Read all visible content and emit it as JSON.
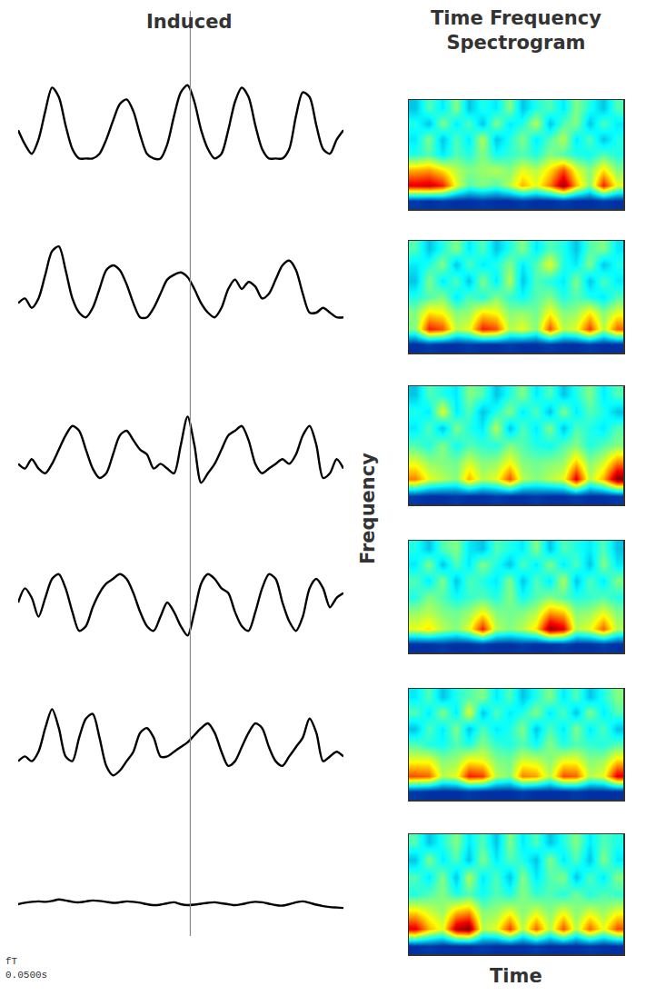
{
  "chart_data": [
    {
      "type": "line",
      "title": "Induced",
      "color": "#000000",
      "tick_labels": false,
      "xlim": [
        0,
        48
      ],
      "ylim": [
        -1,
        1
      ],
      "cursor_x": 25.4,
      "scale_labels": [
        "fT",
        "0.0500s"
      ],
      "panels": [
        [
          -0.1,
          -0.4,
          -0.6,
          -0.3,
          0.3,
          0.8,
          0.6,
          0.0,
          -0.5,
          -0.7,
          -0.7,
          -0.7,
          -0.6,
          -0.3,
          0.1,
          0.45,
          0.55,
          0.3,
          -0.2,
          -0.6,
          -0.7,
          -0.7,
          -0.4,
          0.2,
          0.7,
          0.85,
          0.5,
          -0.1,
          -0.5,
          -0.7,
          -0.6,
          -0.1,
          0.5,
          0.8,
          0.6,
          0.0,
          -0.5,
          -0.7,
          -0.7,
          -0.7,
          -0.5,
          0.2,
          0.7,
          0.6,
          0.0,
          -0.5,
          -0.6,
          -0.3,
          -0.1
        ],
        [
          -0.3,
          -0.2,
          -0.4,
          -0.2,
          0.3,
          0.8,
          0.9,
          0.4,
          -0.2,
          -0.5,
          -0.6,
          -0.4,
          0.0,
          0.4,
          0.5,
          0.4,
          0.1,
          -0.3,
          -0.6,
          -0.6,
          -0.4,
          -0.1,
          0.2,
          0.3,
          0.35,
          0.25,
          0.0,
          -0.3,
          -0.5,
          -0.6,
          -0.4,
          0.0,
          0.2,
          0.0,
          0.15,
          0.05,
          -0.2,
          -0.1,
          0.2,
          0.5,
          0.6,
          0.4,
          -0.1,
          -0.5,
          -0.5,
          -0.4,
          -0.5,
          -0.6,
          -0.6
        ],
        [
          -0.2,
          -0.3,
          -0.1,
          -0.3,
          -0.4,
          -0.2,
          0.1,
          0.4,
          0.6,
          0.5,
          0.1,
          -0.3,
          -0.5,
          -0.4,
          0.0,
          0.4,
          0.5,
          0.3,
          0.1,
          0.0,
          -0.3,
          -0.2,
          -0.3,
          -0.4,
          0.2,
          0.8,
          0.2,
          -0.6,
          -0.4,
          -0.2,
          0.1,
          0.4,
          0.5,
          0.6,
          0.3,
          -0.2,
          -0.4,
          -0.3,
          -0.2,
          -0.1,
          -0.2,
          0.0,
          0.4,
          0.6,
          0.2,
          -0.5,
          -0.4,
          -0.1,
          -0.3
        ],
        [
          0.0,
          0.3,
          0.1,
          -0.3,
          0.1,
          0.5,
          0.6,
          0.3,
          -0.2,
          -0.6,
          -0.5,
          -0.1,
          0.2,
          0.4,
          0.5,
          0.6,
          0.5,
          0.2,
          -0.2,
          -0.5,
          -0.6,
          -0.3,
          0.0,
          -0.2,
          -0.5,
          -0.7,
          -0.2,
          0.4,
          0.6,
          0.5,
          0.3,
          0.2,
          -0.2,
          -0.5,
          -0.6,
          -0.2,
          0.3,
          0.6,
          0.5,
          0.0,
          -0.4,
          -0.6,
          -0.3,
          0.3,
          0.5,
          0.3,
          -0.1,
          0.1,
          0.2
        ],
        [
          -0.3,
          -0.2,
          -0.3,
          -0.1,
          0.4,
          0.8,
          0.4,
          -0.2,
          -0.3,
          0.2,
          0.6,
          0.7,
          0.2,
          -0.4,
          -0.6,
          -0.5,
          -0.3,
          -0.1,
          0.3,
          0.4,
          0.2,
          -0.2,
          -0.2,
          -0.1,
          0.0,
          0.1,
          0.25,
          0.4,
          0.5,
          0.3,
          -0.1,
          -0.4,
          -0.3,
          0.0,
          0.3,
          0.5,
          0.4,
          0.0,
          -0.3,
          -0.4,
          -0.2,
          0.0,
          0.2,
          0.6,
          0.3,
          -0.3,
          -0.2,
          -0.1,
          -0.2
        ],
        [
          0.0,
          0.03,
          0.05,
          0.06,
          0.05,
          0.07,
          0.1,
          0.08,
          0.05,
          0.04,
          0.06,
          0.08,
          0.07,
          0.05,
          0.03,
          0.04,
          0.06,
          0.05,
          0.03,
          0.0,
          -0.02,
          -0.01,
          0.02,
          0.04,
          0.0,
          -0.02,
          -0.01,
          0.01,
          0.03,
          0.04,
          0.02,
          0.0,
          -0.02,
          0.0,
          0.03,
          0.05,
          0.04,
          0.01,
          -0.02,
          -0.03,
          0.0,
          0.04,
          0.06,
          0.03,
          -0.01,
          -0.04,
          -0.06,
          -0.07,
          -0.08
        ]
      ]
    },
    {
      "type": "heatmap",
      "title": "Time Frequency Spectrogram",
      "x_label": "Time",
      "y_label": "Frequency",
      "tick_labels": false,
      "xlim": [
        -0.5,
        15.5
      ],
      "ylim": [
        -0.5,
        6.5
      ],
      "zlim": [
        0,
        1
      ],
      "panels": [
        [
          [
            0.12,
            0.1,
            0.12,
            0.1,
            0.1,
            0.12,
            0.1,
            0.1,
            0.12,
            0.1,
            0.1,
            0.12,
            0.1,
            0.1,
            0.12,
            0.1
          ],
          [
            0.9,
            0.92,
            0.85,
            0.6,
            0.45,
            0.5,
            0.45,
            0.55,
            0.7,
            0.6,
            0.75,
            0.98,
            0.7,
            0.5,
            0.85,
            0.6
          ],
          [
            0.7,
            0.72,
            0.65,
            0.55,
            0.5,
            0.52,
            0.55,
            0.5,
            0.6,
            0.55,
            0.65,
            0.8,
            0.6,
            0.5,
            0.65,
            0.5
          ],
          [
            0.4,
            0.45,
            0.35,
            0.45,
            0.4,
            0.5,
            0.38,
            0.42,
            0.45,
            0.4,
            0.5,
            0.45,
            0.4,
            0.38,
            0.45,
            0.4
          ],
          [
            0.35,
            0.5,
            0.3,
            0.45,
            0.35,
            0.55,
            0.3,
            0.4,
            0.5,
            0.35,
            0.45,
            0.55,
            0.35,
            0.45,
            0.3,
            0.4
          ],
          [
            0.4,
            0.3,
            0.5,
            0.35,
            0.45,
            0.3,
            0.5,
            0.35,
            0.4,
            0.55,
            0.3,
            0.45,
            0.5,
            0.3,
            0.45,
            0.35
          ],
          [
            0.3,
            0.45,
            0.35,
            0.5,
            0.3,
            0.4,
            0.35,
            0.5,
            0.3,
            0.4,
            0.45,
            0.35,
            0.5,
            0.4,
            0.3,
            0.45
          ]
        ],
        [
          [
            0.1,
            0.12,
            0.1,
            0.1,
            0.12,
            0.1,
            0.1,
            0.12,
            0.1,
            0.1,
            0.12,
            0.1,
            0.1,
            0.12,
            0.1,
            0.1
          ],
          [
            0.5,
            0.85,
            0.8,
            0.55,
            0.6,
            0.85,
            0.8,
            0.55,
            0.6,
            0.5,
            0.8,
            0.55,
            0.6,
            0.82,
            0.55,
            0.78
          ],
          [
            0.5,
            0.65,
            0.62,
            0.5,
            0.52,
            0.65,
            0.62,
            0.5,
            0.52,
            0.48,
            0.62,
            0.5,
            0.52,
            0.64,
            0.5,
            0.6
          ],
          [
            0.4,
            0.45,
            0.5,
            0.35,
            0.45,
            0.4,
            0.5,
            0.42,
            0.38,
            0.45,
            0.5,
            0.4,
            0.45,
            0.4,
            0.35,
            0.45
          ],
          [
            0.3,
            0.5,
            0.35,
            0.45,
            0.3,
            0.5,
            0.35,
            0.55,
            0.3,
            0.45,
            0.4,
            0.35,
            0.5,
            0.3,
            0.45,
            0.35
          ],
          [
            0.35,
            0.4,
            0.5,
            0.3,
            0.45,
            0.35,
            0.4,
            0.5,
            0.35,
            0.45,
            0.6,
            0.4,
            0.35,
            0.5,
            0.3,
            0.4
          ],
          [
            0.45,
            0.3,
            0.4,
            0.5,
            0.35,
            0.45,
            0.3,
            0.4,
            0.5,
            0.35,
            0.45,
            0.4,
            0.3,
            0.45,
            0.5,
            0.35
          ]
        ],
        [
          [
            0.12,
            0.1,
            0.1,
            0.12,
            0.1,
            0.1,
            0.12,
            0.1,
            0.1,
            0.12,
            0.1,
            0.1,
            0.12,
            0.1,
            0.1,
            0.12
          ],
          [
            0.75,
            0.6,
            0.55,
            0.5,
            0.7,
            0.55,
            0.6,
            0.8,
            0.55,
            0.5,
            0.55,
            0.6,
            0.9,
            0.55,
            0.7,
            1.0
          ],
          [
            0.6,
            0.52,
            0.5,
            0.48,
            0.58,
            0.5,
            0.52,
            0.62,
            0.5,
            0.48,
            0.5,
            0.52,
            0.68,
            0.5,
            0.58,
            0.75
          ],
          [
            0.45,
            0.4,
            0.5,
            0.38,
            0.45,
            0.42,
            0.4,
            0.5,
            0.45,
            0.4,
            0.38,
            0.45,
            0.5,
            0.4,
            0.45,
            0.5
          ],
          [
            0.35,
            0.45,
            0.3,
            0.5,
            0.4,
            0.35,
            0.55,
            0.3,
            0.45,
            0.35,
            0.5,
            0.3,
            0.45,
            0.4,
            0.35,
            0.45
          ],
          [
            0.4,
            0.35,
            0.6,
            0.35,
            0.45,
            0.3,
            0.4,
            0.5,
            0.35,
            0.45,
            0.3,
            0.5,
            0.35,
            0.45,
            0.4,
            0.3
          ],
          [
            0.3,
            0.45,
            0.4,
            0.35,
            0.5,
            0.45,
            0.3,
            0.4,
            0.5,
            0.35,
            0.45,
            0.3,
            0.4,
            0.5,
            0.35,
            0.45
          ]
        ],
        [
          [
            0.1,
            0.1,
            0.12,
            0.1,
            0.1,
            0.12,
            0.1,
            0.1,
            0.12,
            0.1,
            0.1,
            0.12,
            0.1,
            0.1,
            0.12,
            0.1
          ],
          [
            0.6,
            0.65,
            0.55,
            0.5,
            0.6,
            0.85,
            0.55,
            0.5,
            0.55,
            0.65,
            0.98,
            0.9,
            0.55,
            0.6,
            0.78,
            0.55
          ],
          [
            0.52,
            0.55,
            0.5,
            0.48,
            0.52,
            0.62,
            0.5,
            0.48,
            0.5,
            0.55,
            0.72,
            0.68,
            0.5,
            0.52,
            0.6,
            0.5
          ],
          [
            0.4,
            0.5,
            0.45,
            0.38,
            0.42,
            0.45,
            0.4,
            0.5,
            0.38,
            0.45,
            0.5,
            0.45,
            0.4,
            0.42,
            0.45,
            0.4
          ],
          [
            0.45,
            0.35,
            0.5,
            0.3,
            0.45,
            0.4,
            0.35,
            0.5,
            0.3,
            0.45,
            0.35,
            0.55,
            0.3,
            0.45,
            0.35,
            0.5
          ],
          [
            0.35,
            0.5,
            0.3,
            0.45,
            0.35,
            0.5,
            0.4,
            0.3,
            0.45,
            0.35,
            0.5,
            0.35,
            0.45,
            0.3,
            0.5,
            0.35
          ],
          [
            0.4,
            0.3,
            0.45,
            0.5,
            0.35,
            0.3,
            0.45,
            0.4,
            0.35,
            0.5,
            0.3,
            0.45,
            0.4,
            0.35,
            0.45,
            0.3
          ]
        ],
        [
          [
            0.12,
            0.1,
            0.1,
            0.1,
            0.12,
            0.1,
            0.1,
            0.1,
            0.12,
            0.1,
            0.1,
            0.1,
            0.12,
            0.1,
            0.1,
            0.1
          ],
          [
            0.8,
            0.78,
            0.55,
            0.6,
            0.85,
            0.82,
            0.55,
            0.5,
            0.75,
            0.72,
            0.55,
            0.8,
            0.78,
            0.55,
            0.6,
            0.9
          ],
          [
            0.6,
            0.6,
            0.5,
            0.52,
            0.62,
            0.6,
            0.5,
            0.48,
            0.58,
            0.56,
            0.5,
            0.6,
            0.6,
            0.5,
            0.52,
            0.65
          ],
          [
            0.45,
            0.4,
            0.38,
            0.45,
            0.4,
            0.5,
            0.42,
            0.4,
            0.45,
            0.38,
            0.5,
            0.4,
            0.45,
            0.42,
            0.4,
            0.45
          ],
          [
            0.3,
            0.45,
            0.35,
            0.5,
            0.3,
            0.45,
            0.35,
            0.4,
            0.5,
            0.3,
            0.45,
            0.35,
            0.5,
            0.35,
            0.45,
            0.3
          ],
          [
            0.45,
            0.35,
            0.5,
            0.35,
            0.6,
            0.3,
            0.45,
            0.35,
            0.4,
            0.5,
            0.35,
            0.45,
            0.3,
            0.5,
            0.35,
            0.45
          ],
          [
            0.35,
            0.45,
            0.3,
            0.4,
            0.45,
            0.5,
            0.35,
            0.45,
            0.3,
            0.4,
            0.5,
            0.35,
            0.45,
            0.3,
            0.4,
            0.5
          ]
        ],
        [
          [
            0.1,
            0.12,
            0.1,
            0.1,
            0.1,
            0.12,
            0.1,
            0.1,
            0.1,
            0.12,
            0.1,
            0.1,
            0.1,
            0.12,
            0.1,
            0.1
          ],
          [
            0.9,
            0.7,
            0.6,
            0.95,
            1.0,
            0.55,
            0.6,
            0.82,
            0.55,
            0.78,
            0.55,
            0.8,
            0.55,
            0.78,
            0.6,
            0.8
          ],
          [
            0.65,
            0.58,
            0.52,
            0.68,
            0.72,
            0.5,
            0.52,
            0.6,
            0.5,
            0.58,
            0.5,
            0.6,
            0.5,
            0.58,
            0.52,
            0.6
          ],
          [
            0.4,
            0.45,
            0.5,
            0.4,
            0.45,
            0.38,
            0.45,
            0.4,
            0.5,
            0.42,
            0.45,
            0.4,
            0.48,
            0.4,
            0.45,
            0.42
          ],
          [
            0.45,
            0.35,
            0.5,
            0.3,
            0.55,
            0.35,
            0.45,
            0.3,
            0.5,
            0.35,
            0.45,
            0.5,
            0.3,
            0.45,
            0.35,
            0.5
          ],
          [
            0.3,
            0.5,
            0.35,
            0.45,
            0.3,
            0.5,
            0.35,
            0.45,
            0.4,
            0.3,
            0.5,
            0.35,
            0.45,
            0.3,
            0.5,
            0.35
          ],
          [
            0.45,
            0.3,
            0.4,
            0.5,
            0.35,
            0.45,
            0.3,
            0.5,
            0.35,
            0.45,
            0.3,
            0.4,
            0.5,
            0.35,
            0.45,
            0.4
          ]
        ]
      ]
    }
  ]
}
